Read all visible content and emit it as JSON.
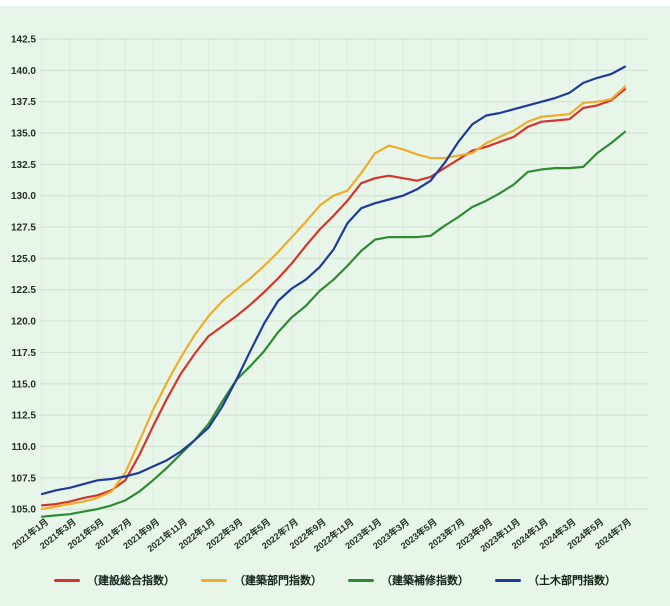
{
  "chart_data": {
    "type": "line",
    "title": "",
    "background_color": "#e7f6e8",
    "grid_color_h": "#d2e3d3",
    "grid_color_v": "#dcecdd",
    "axis_text_color": "#22301f",
    "ylim": [
      105.0,
      142.5
    ],
    "y_tick_step": 2.5,
    "y_ticks": [
      "142.5",
      "140.0",
      "137.5",
      "135.0",
      "132.5",
      "130.0",
      "127.5",
      "125.0",
      "122.5",
      "120.0",
      "117.5",
      "115.0",
      "112.5",
      "110.0",
      "107.5",
      "105.0"
    ],
    "x_tick_labels": [
      "2021年1月",
      "2021年3月",
      "2021年5月",
      "2021年7月",
      "2021年9月",
      "2021年11月",
      "2022年1月",
      "2022年3月",
      "2022年5月",
      "2022年7月",
      "2022年9月",
      "2022年11月",
      "2023年1月",
      "2023年3月",
      "2023年5月",
      "2023年7月",
      "2023年9月",
      "2023年11月",
      "2024年1月",
      "2024年3月",
      "2024年5月",
      "2024年7月"
    ],
    "x": [
      "2021年1月",
      "2021年2月",
      "2021年3月",
      "2021年4月",
      "2021年5月",
      "2021年6月",
      "2021年7月",
      "2021年8月",
      "2021年9月",
      "2021年10月",
      "2021年11月",
      "2021年12月",
      "2022年1月",
      "2022年2月",
      "2022年3月",
      "2022年4月",
      "2022年5月",
      "2022年6月",
      "2022年7月",
      "2022年8月",
      "2022年9月",
      "2022年10月",
      "2022年11月",
      "2022年12月",
      "2023年1月",
      "2023年2月",
      "2023年3月",
      "2023年4月",
      "2023年5月",
      "2023年6月",
      "2023年7月",
      "2023年8月",
      "2023年9月",
      "2023年10月",
      "2023年11月",
      "2023年12月",
      "2024年1月",
      "2024年2月",
      "2024年3月",
      "2024年4月",
      "2024年5月",
      "2024年6月",
      "2024年7月"
    ],
    "tick_every": 2,
    "legend_position": "bottom",
    "series": [
      {
        "name": "（建設総合指数）",
        "color": "#d7352b",
        "values": [
          105.3,
          105.4,
          105.6,
          105.9,
          106.1,
          106.5,
          107.3,
          109.3,
          111.6,
          113.8,
          115.8,
          117.4,
          118.8,
          119.6,
          120.4,
          121.3,
          122.3,
          123.4,
          124.6,
          126.0,
          127.3,
          128.4,
          129.6,
          131.0,
          131.4,
          131.6,
          131.4,
          131.2,
          131.5,
          132.2,
          132.9,
          133.6,
          133.9,
          134.3,
          134.7,
          135.5,
          135.9,
          136.0,
          136.1,
          137.0,
          137.2,
          137.6,
          138.5
        ]
      },
      {
        "name": "（建築部門指数）",
        "color": "#efad2e",
        "values": [
          105.0,
          105.2,
          105.4,
          105.6,
          105.9,
          106.4,
          107.9,
          110.4,
          112.9,
          115.1,
          117.1,
          118.9,
          120.4,
          121.6,
          122.5,
          123.4,
          124.4,
          125.5,
          126.7,
          127.9,
          129.2,
          130.0,
          130.4,
          131.8,
          133.4,
          134.0,
          133.7,
          133.3,
          133.0,
          133.0,
          133.2,
          133.4,
          134.2,
          134.7,
          135.2,
          135.9,
          136.3,
          136.4,
          136.5,
          137.4,
          137.5,
          137.7,
          138.7
        ]
      },
      {
        "name": "（建築補修指数）",
        "color": "#2e8b34",
        "values": [
          104.4,
          104.5,
          104.6,
          104.8,
          105.0,
          105.3,
          105.7,
          106.4,
          107.3,
          108.3,
          109.4,
          110.5,
          111.8,
          113.6,
          115.3,
          116.4,
          117.6,
          119.1,
          120.3,
          121.2,
          122.4,
          123.3,
          124.4,
          125.6,
          126.5,
          126.7,
          126.7,
          126.7,
          126.8,
          127.6,
          128.3,
          129.1,
          129.6,
          130.2,
          130.9,
          131.9,
          132.1,
          132.2,
          132.2,
          132.3,
          133.4,
          134.2,
          135.1
        ]
      },
      {
        "name": "（土木部門指数）",
        "color": "#1e3a9b",
        "values": [
          106.2,
          106.5,
          106.7,
          107.0,
          107.3,
          107.4,
          107.6,
          107.9,
          108.4,
          108.9,
          109.6,
          110.5,
          111.5,
          113.2,
          115.3,
          117.6,
          119.8,
          121.6,
          122.6,
          123.3,
          124.3,
          125.7,
          127.8,
          129.0,
          129.4,
          129.7,
          130.0,
          130.5,
          131.2,
          132.6,
          134.3,
          135.7,
          136.4,
          136.6,
          136.9,
          137.2,
          137.5,
          137.8,
          138.2,
          139.0,
          139.4,
          139.7,
          140.3
        ]
      }
    ]
  }
}
